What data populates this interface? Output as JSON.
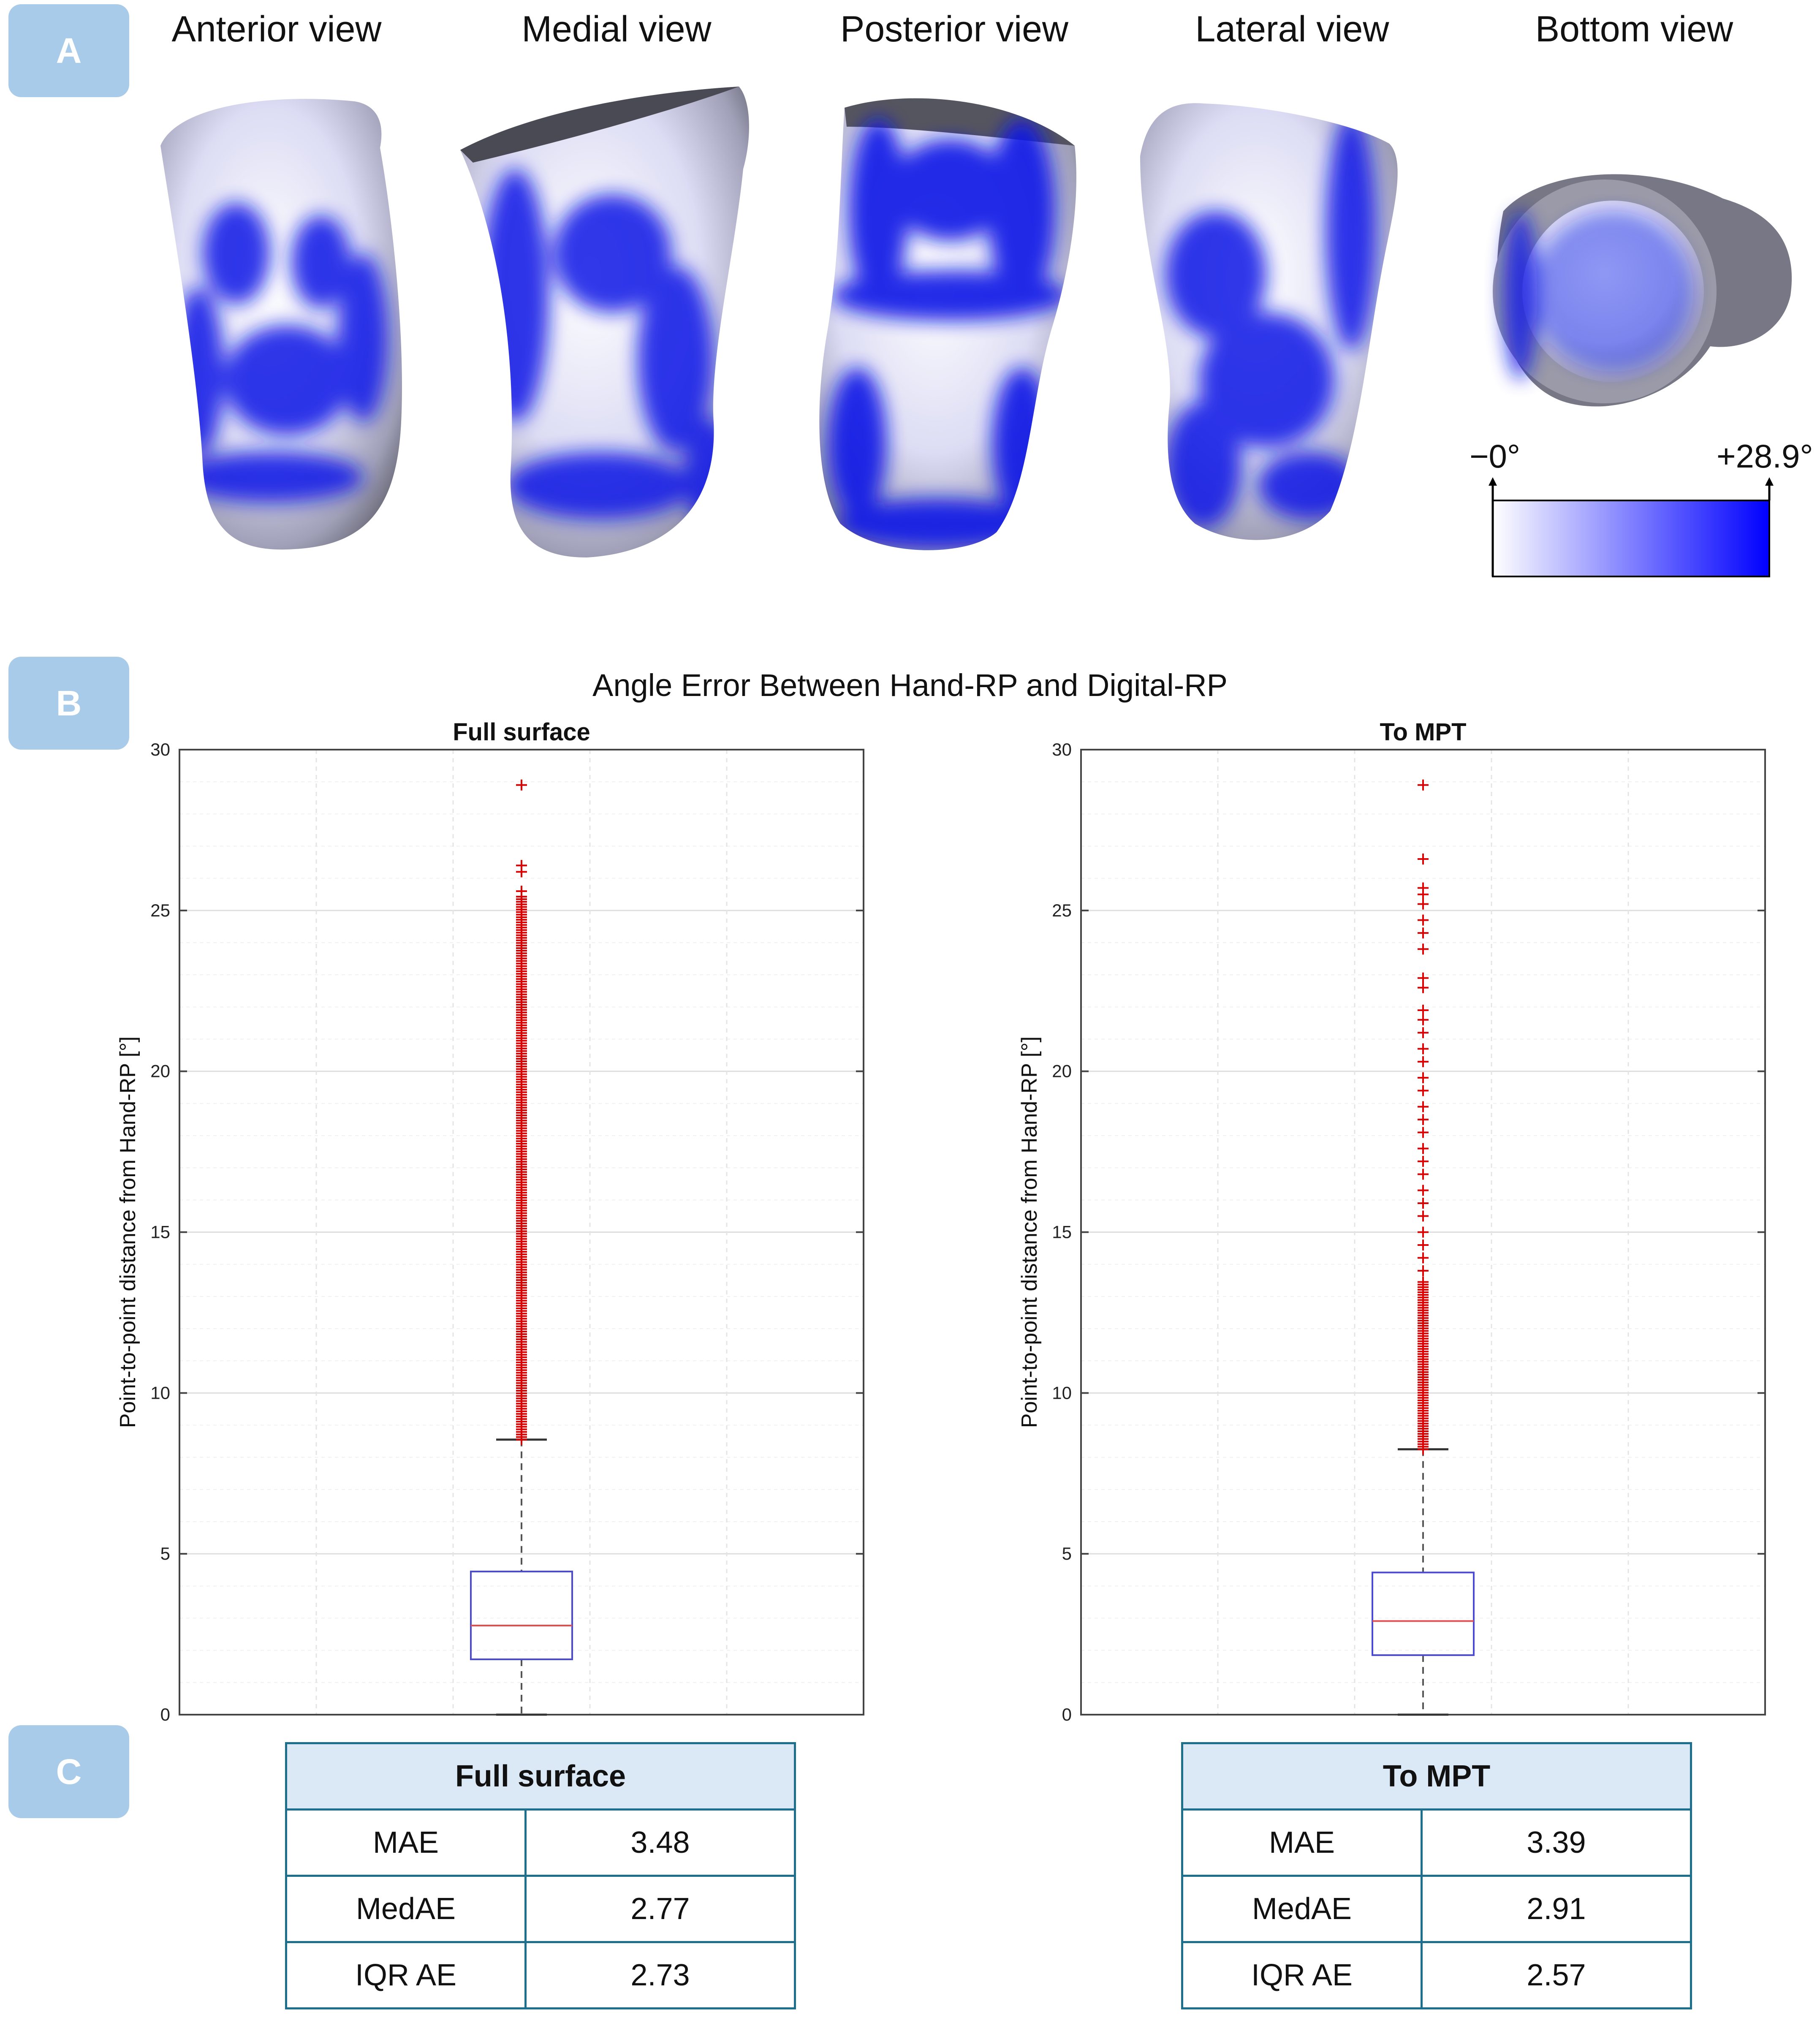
{
  "panels": {
    "a": "A",
    "b": "B",
    "c": "C"
  },
  "views": [
    "Anterior view",
    "Medial view",
    "Posterior view",
    "Lateral view",
    "Bottom view"
  ],
  "colorbar": {
    "min_label": "−0°",
    "max_label": "+28.9°",
    "min": 0,
    "max": 28.9,
    "low_color": "#ffffff",
    "high_color": "#0000ff"
  },
  "colors": {
    "surface_blue": "#0a14e6",
    "badge": "#a9cbea",
    "box": "#4a4ad4",
    "median": "#e05050",
    "outlier": "#dd0000",
    "table_border": "#1e6e8e",
    "table_header": "#dbe8f5"
  },
  "chart_data": [
    {
      "type": "box",
      "main_title": "Angle Error Between Hand-RP and Digital-RP",
      "title": "Full surface",
      "ylabel": "Point-to-point distance from Hand-RP [°]",
      "ylim": [
        0,
        30
      ],
      "yticks": [
        0,
        5,
        10,
        15,
        20,
        25,
        30
      ],
      "grid": true,
      "box": {
        "q1": 1.72,
        "median": 2.77,
        "q3": 4.45,
        "whisker_low": 0,
        "whisker_high": 8.55
      },
      "outliers": {
        "min": 8.55,
        "max": 28.9,
        "dense_until": 25.5,
        "sparse": [
          25.6,
          26.2,
          26.4,
          28.9
        ]
      }
    },
    {
      "type": "box",
      "title": "To MPT",
      "ylabel": "Point-to-point distance from Hand-RP [°]",
      "ylim": [
        0,
        30
      ],
      "yticks": [
        0,
        5,
        10,
        15,
        20,
        25,
        30
      ],
      "grid": true,
      "box": {
        "q1": 1.85,
        "median": 2.91,
        "q3": 4.42,
        "whisker_low": 0,
        "whisker_high": 8.25
      },
      "outliers": {
        "min": 8.25,
        "max": 28.9,
        "dense_until": 13.5,
        "sparse": [
          13.8,
          14.2,
          14.6,
          15.0,
          15.5,
          15.9,
          16.3,
          16.8,
          17.2,
          17.6,
          18.1,
          18.5,
          18.9,
          19.4,
          19.8,
          20.3,
          20.7,
          21.2,
          21.6,
          21.9,
          22.6,
          22.9,
          23.8,
          24.3,
          24.7,
          25.2,
          25.5,
          25.7,
          26.6,
          28.9
        ]
      }
    }
  ],
  "tables": [
    {
      "title": "Full surface",
      "rows": [
        [
          "MAE",
          "3.48"
        ],
        [
          "MedAE",
          "2.77"
        ],
        [
          "IQR AE",
          "2.73"
        ]
      ]
    },
    {
      "title": "To MPT",
      "rows": [
        [
          "MAE",
          "3.39"
        ],
        [
          "MedAE",
          "2.91"
        ],
        [
          "IQR AE",
          "2.57"
        ]
      ]
    }
  ]
}
